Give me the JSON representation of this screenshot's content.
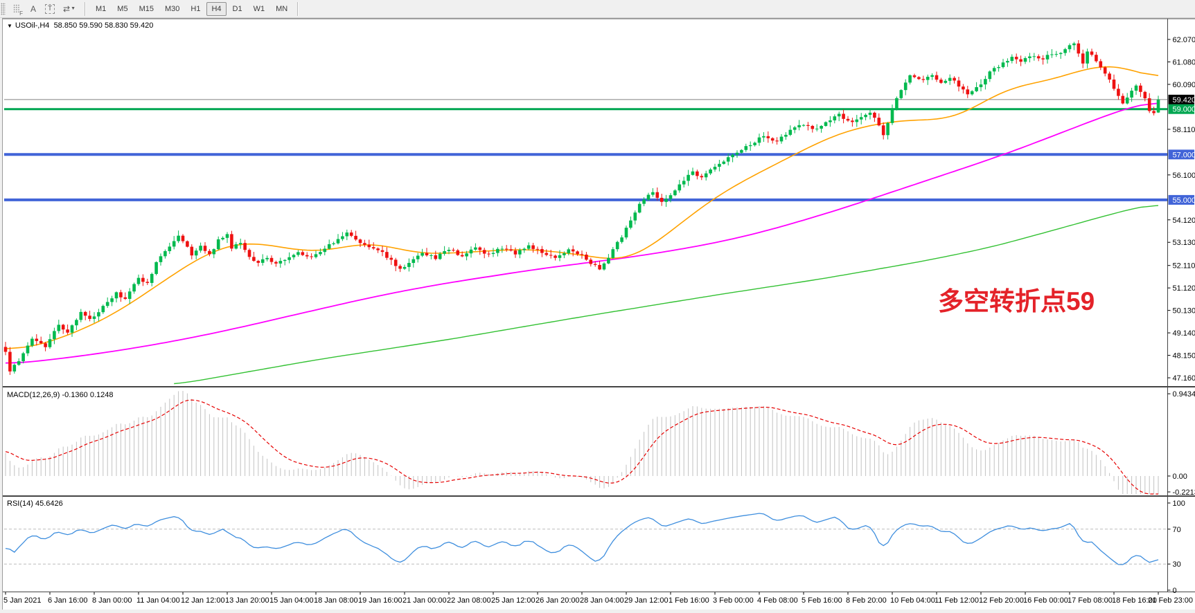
{
  "toolbar": {
    "grid_icon_label": "F",
    "annotate_label": "A",
    "text_tool_label": "T",
    "timeframes": [
      {
        "label": "M1",
        "active": false
      },
      {
        "label": "M5",
        "active": false
      },
      {
        "label": "M15",
        "active": false
      },
      {
        "label": "M30",
        "active": false
      },
      {
        "label": "H1",
        "active": false
      },
      {
        "label": "H4",
        "active": true
      },
      {
        "label": "D1",
        "active": false
      },
      {
        "label": "W1",
        "active": false
      },
      {
        "label": "MN",
        "active": false
      }
    ]
  },
  "chart_header": {
    "symbol": "USOil-,H4",
    "quotes": "58.850 59.590 58.830 59.420"
  },
  "chart_data": {
    "type": "candlestick",
    "symbol": "USOil-",
    "timeframe": "H4",
    "n_bars": 261,
    "bars_per_gridline": 10,
    "last_bar_ohlc": [
      58.85,
      59.59,
      58.83,
      59.42
    ],
    "price_ticks": [
      "62.070",
      "61.080",
      "60.090",
      "58.110",
      "56.100",
      "54.120",
      "53.130",
      "52.110",
      "51.120",
      "50.130",
      "49.140",
      "48.150",
      "47.160"
    ],
    "hlines": [
      {
        "value": 59.42,
        "label": "59.420",
        "color": "#808080",
        "badge": "#000000",
        "width": 1
      },
      {
        "value": 59.0,
        "label": "59.000",
        "color": "#00a651",
        "badge": "#00a651",
        "width": 3
      },
      {
        "value": 57.0,
        "label": "57.000",
        "color": "#4164d8",
        "badge": "#4164d8",
        "width": 4
      },
      {
        "value": 55.0,
        "label": "55.000",
        "color": "#4164d8",
        "badge": "#4164d8",
        "width": 4
      }
    ],
    "time_labels": [
      "5 Jan 2021",
      "6 Jan 16:00",
      "8 Jan 00:00",
      "11 Jan 04:00",
      "12 Jan 12:00",
      "13 Jan 20:00",
      "15 Jan 04:00",
      "18 Jan 08:00",
      "19 Jan 16:00",
      "21 Jan 00:00",
      "22 Jan 08:00",
      "25 Jan 12:00",
      "26 Jan 20:00",
      "28 Jan 04:00",
      "29 Jan 12:00",
      "1 Feb 16:00",
      "3 Feb 00:00",
      "4 Feb 08:00",
      "5 Feb 16:00",
      "8 Feb 20:00",
      "10 Feb 04:00",
      "11 Feb 12:00",
      "12 Feb 20:00",
      "16 Feb 00:00",
      "17 Feb 08:00",
      "18 Feb 16:00",
      "21 Feb 23:00"
    ],
    "price_anchors": [
      [
        0,
        48.3
      ],
      [
        1,
        47.4
      ],
      [
        3,
        47.95
      ],
      [
        6,
        48.9
      ],
      [
        9,
        48.55
      ],
      [
        12,
        49.5
      ],
      [
        14,
        49.15
      ],
      [
        17,
        50.05
      ],
      [
        19,
        49.7
      ],
      [
        21,
        50.1
      ],
      [
        23,
        50.45
      ],
      [
        25,
        50.9
      ],
      [
        27,
        50.6
      ],
      [
        30,
        51.6
      ],
      [
        32,
        51.3
      ],
      [
        34,
        52.2
      ],
      [
        36,
        52.75
      ],
      [
        39,
        53.4
      ],
      [
        40,
        53.2
      ],
      [
        42,
        52.6
      ],
      [
        44,
        52.95
      ],
      [
        46,
        52.55
      ],
      [
        48,
        53.2
      ],
      [
        50,
        53.5
      ],
      [
        51,
        52.9
      ],
      [
        53,
        53.1
      ],
      [
        55,
        52.5
      ],
      [
        57,
        52.2
      ],
      [
        59,
        52.45
      ],
      [
        61,
        52.15
      ],
      [
        63,
        52.4
      ],
      [
        66,
        52.65
      ],
      [
        69,
        52.5
      ],
      [
        72,
        52.9
      ],
      [
        75,
        53.25
      ],
      [
        77,
        53.55
      ],
      [
        79,
        53.2
      ],
      [
        82,
        52.95
      ],
      [
        85,
        52.7
      ],
      [
        87,
        52.3
      ],
      [
        89,
        51.95
      ],
      [
        91,
        52.25
      ],
      [
        94,
        52.6
      ],
      [
        97,
        52.45
      ],
      [
        100,
        52.8
      ],
      [
        103,
        52.55
      ],
      [
        106,
        52.85
      ],
      [
        109,
        52.6
      ],
      [
        112,
        52.9
      ],
      [
        115,
        52.65
      ],
      [
        118,
        52.95
      ],
      [
        121,
        52.7
      ],
      [
        124,
        52.5
      ],
      [
        127,
        52.8
      ],
      [
        130,
        52.55
      ],
      [
        132,
        52.2
      ],
      [
        134,
        51.95
      ],
      [
        136,
        52.5
      ],
      [
        139,
        53.4
      ],
      [
        141,
        54.1
      ],
      [
        143,
        54.8
      ],
      [
        146,
        55.35
      ],
      [
        148,
        54.95
      ],
      [
        150,
        55.2
      ],
      [
        153,
        55.85
      ],
      [
        155,
        56.25
      ],
      [
        157,
        55.95
      ],
      [
        161,
        56.6
      ],
      [
        165,
        57.05
      ],
      [
        167,
        57.35
      ],
      [
        171,
        57.8
      ],
      [
        174,
        57.6
      ],
      [
        177,
        58.05
      ],
      [
        180,
        58.35
      ],
      [
        183,
        58.1
      ],
      [
        186,
        58.5
      ],
      [
        188,
        58.75
      ],
      [
        191,
        58.4
      ],
      [
        193,
        58.65
      ],
      [
        195,
        58.9
      ],
      [
        197,
        58.3
      ],
      [
        198,
        57.85
      ],
      [
        200,
        59.0
      ],
      [
        202,
        59.9
      ],
      [
        204,
        60.5
      ],
      [
        206,
        60.3
      ],
      [
        209,
        60.45
      ],
      [
        211,
        60.2
      ],
      [
        213,
        60.35
      ],
      [
        216,
        59.9
      ],
      [
        217,
        59.65
      ],
      [
        220,
        60.1
      ],
      [
        222,
        60.6
      ],
      [
        224,
        60.9
      ],
      [
        227,
        61.3
      ],
      [
        229,
        61.1
      ],
      [
        232,
        61.35
      ],
      [
        234,
        61.2
      ],
      [
        236,
        61.45
      ],
      [
        238,
        61.5
      ],
      [
        241,
        61.9
      ],
      [
        243,
        60.95
      ],
      [
        244,
        61.55
      ],
      [
        246,
        61.15
      ],
      [
        248,
        60.55
      ],
      [
        250,
        59.95
      ],
      [
        252,
        59.25
      ],
      [
        254,
        59.85
      ],
      [
        255,
        60.1
      ],
      [
        257,
        59.5
      ],
      [
        258,
        58.95
      ],
      [
        259,
        58.85
      ],
      [
        260,
        59.42
      ]
    ],
    "ma_orange_anchors": [
      [
        0,
        48.35
      ],
      [
        8,
        48.6
      ],
      [
        15,
        49.1
      ],
      [
        22,
        49.7
      ],
      [
        28,
        50.4
      ],
      [
        34,
        51.2
      ],
      [
        40,
        52.0
      ],
      [
        45,
        52.6
      ],
      [
        50,
        53.0
      ],
      [
        55,
        53.15
      ],
      [
        60,
        53.0
      ],
      [
        65,
        52.8
      ],
      [
        70,
        52.7
      ],
      [
        75,
        52.85
      ],
      [
        80,
        53.1
      ],
      [
        85,
        53.05
      ],
      [
        90,
        52.75
      ],
      [
        95,
        52.6
      ],
      [
        100,
        52.65
      ],
      [
        106,
        52.72
      ],
      [
        112,
        52.78
      ],
      [
        118,
        52.85
      ],
      [
        124,
        52.7
      ],
      [
        130,
        52.6
      ],
      [
        134,
        52.42
      ],
      [
        138,
        52.3
      ],
      [
        142,
        52.5
      ],
      [
        146,
        53.0
      ],
      [
        150,
        53.6
      ],
      [
        155,
        54.4
      ],
      [
        160,
        55.1
      ],
      [
        165,
        55.7
      ],
      [
        170,
        56.2
      ],
      [
        175,
        56.7
      ],
      [
        180,
        57.2
      ],
      [
        185,
        57.7
      ],
      [
        190,
        58.05
      ],
      [
        195,
        58.3
      ],
      [
        200,
        58.45
      ],
      [
        205,
        58.55
      ],
      [
        210,
        58.5
      ],
      [
        214,
        58.6
      ],
      [
        218,
        59.0
      ],
      [
        222,
        59.5
      ],
      [
        226,
        59.9
      ],
      [
        230,
        60.1
      ],
      [
        234,
        60.2
      ],
      [
        238,
        60.4
      ],
      [
        242,
        60.7
      ],
      [
        246,
        60.9
      ],
      [
        250,
        60.95
      ],
      [
        254,
        60.8
      ],
      [
        257,
        60.5
      ],
      [
        260,
        60.15
      ]
    ],
    "ma_magenta_anchors": [
      [
        0,
        47.75
      ],
      [
        10,
        47.95
      ],
      [
        20,
        48.2
      ],
      [
        30,
        48.5
      ],
      [
        40,
        48.85
      ],
      [
        50,
        49.25
      ],
      [
        60,
        49.7
      ],
      [
        70,
        50.15
      ],
      [
        80,
        50.6
      ],
      [
        90,
        51.0
      ],
      [
        100,
        51.35
      ],
      [
        110,
        51.65
      ],
      [
        120,
        51.95
      ],
      [
        130,
        52.2
      ],
      [
        140,
        52.45
      ],
      [
        150,
        52.75
      ],
      [
        160,
        53.1
      ],
      [
        170,
        53.55
      ],
      [
        180,
        54.1
      ],
      [
        190,
        54.7
      ],
      [
        200,
        55.35
      ],
      [
        210,
        56.0
      ],
      [
        220,
        56.65
      ],
      [
        228,
        57.2
      ],
      [
        236,
        57.8
      ],
      [
        244,
        58.4
      ],
      [
        250,
        58.85
      ],
      [
        255,
        59.15
      ],
      [
        260,
        59.42
      ]
    ],
    "ma_green_anchors": [
      [
        38,
        46.85
      ],
      [
        70,
        47.95
      ],
      [
        100,
        48.85
      ],
      [
        130,
        49.85
      ],
      [
        160,
        50.8
      ],
      [
        185,
        51.55
      ],
      [
        207,
        52.3
      ],
      [
        222,
        52.9
      ],
      [
        238,
        53.75
      ],
      [
        248,
        54.3
      ],
      [
        255,
        54.65
      ],
      [
        260,
        54.9
      ]
    ],
    "colors": {
      "up_candle": "#00b94e",
      "down_candle": "#ee1111",
      "ma_orange": "#ffa200",
      "ma_magenta": "#ff00ff",
      "ma_green": "#33c133",
      "macd_histogram": "#c2c2c2",
      "macd_signal": "#e60000",
      "rsi_line": "#3e8ede",
      "annotation_red": "#e42229"
    },
    "macd": {
      "label": "MACD(12,26,9) -0.1360 0.1248",
      "main_value": "-0.1360",
      "signal_value": "0.1248",
      "ticks": [
        "0.9434",
        "0.00",
        "-0.2213"
      ]
    },
    "rsi": {
      "label": "RSI(14) 45.6426",
      "value": "45.6426",
      "ticks": [
        "100",
        "70",
        "30",
        "0"
      ],
      "levels": [
        70,
        30
      ]
    },
    "annotation": {
      "text": "多空转折点59",
      "color": "#e42229"
    }
  }
}
